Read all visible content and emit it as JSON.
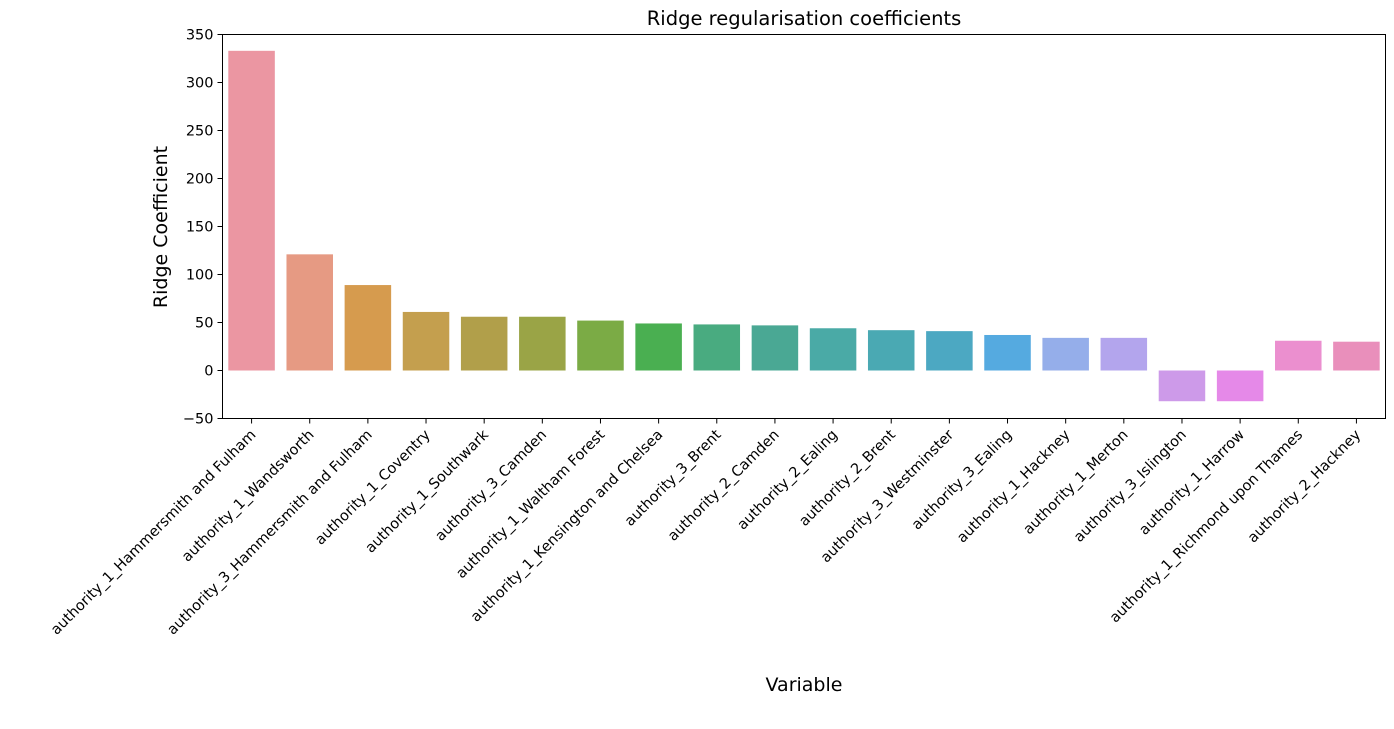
{
  "chart_data": {
    "type": "bar",
    "title": "Ridge regularisation coefficients",
    "xlabel": "Variable",
    "ylabel": "Ridge Coefficient",
    "ylim": [
      -50,
      350
    ],
    "yticks": [
      -50,
      0,
      50,
      100,
      150,
      200,
      250,
      300,
      350
    ],
    "grid": false,
    "legend": "none",
    "categories": [
      "authority_1_Hammersmith and Fulham",
      "authority_1_Wandsworth",
      "authority_3_Hammersmith and Fulham",
      "authority_1_Coventry",
      "authority_1_Southwark",
      "authority_3_Camden",
      "authority_1_Waltham Forest",
      "authority_1_Kensington and Chelsea",
      "authority_3_Brent",
      "authority_2_Camden",
      "authority_2_Ealing",
      "authority_2_Brent",
      "authority_3_Westminster",
      "authority_3_Ealing",
      "authority_1_Hackney",
      "authority_1_Merton",
      "authority_3_Islington",
      "authority_1_Harrow",
      "authority_1_Richmond upon Thames",
      "authority_2_Hackney"
    ],
    "values": [
      333,
      121,
      89,
      61,
      56,
      56,
      52,
      49,
      48,
      47,
      44,
      42,
      41,
      37,
      34,
      34,
      -32,
      -32,
      31,
      30
    ],
    "colors": [
      "#eb96a2",
      "#e69a83",
      "#d69b4e",
      "#c49f4e",
      "#b19f4a",
      "#9aa446",
      "#7bab45",
      "#4aaf51",
      "#49ab80",
      "#4aa894",
      "#4aaaa6",
      "#4aa9b3",
      "#4ca8c2",
      "#55aae0",
      "#95aeea",
      "#b3a5ed",
      "#cd9ae9",
      "#e589e8",
      "#eb8fcf",
      "#e98fbb"
    ]
  }
}
